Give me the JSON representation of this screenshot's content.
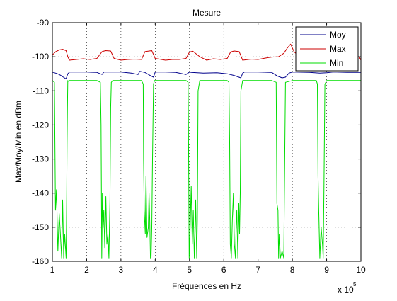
{
  "chart_data": {
    "type": "line",
    "title": "Mesure",
    "xlabel": "Fréquences en Hz",
    "ylabel": "Max/Moy/Min en dBm",
    "x_exponent_label": "x 10",
    "x_exponent": "5",
    "xlim": [
      1,
      10
    ],
    "ylim": [
      -160,
      -90
    ],
    "xticks": [
      1,
      2,
      3,
      4,
      5,
      6,
      7,
      8,
      9,
      10
    ],
    "yticks": [
      -90,
      -100,
      -110,
      -120,
      -130,
      -140,
      -150,
      -160
    ],
    "grid": true,
    "legend_position": "top-right",
    "series": [
      {
        "name": "Moy",
        "color": "#00008b",
        "x": [
          1.0,
          1.15,
          1.25,
          1.32,
          1.4,
          1.45,
          1.5,
          2.0,
          2.3,
          2.45,
          2.5,
          3.0,
          3.3,
          3.5,
          3.55,
          3.7,
          3.85,
          3.95,
          4.0,
          4.3,
          4.6,
          4.9,
          5.0,
          5.05,
          5.4,
          5.8,
          6.1,
          6.3,
          6.5,
          6.55,
          6.6,
          7.0,
          7.4,
          7.55,
          7.7,
          7.8,
          7.9,
          8.0,
          8.5,
          8.8,
          9.0,
          9.2,
          9.6,
          10.0
        ],
        "y": [
          -104.5,
          -105.0,
          -105.5,
          -106.0,
          -106.5,
          -105.0,
          -104.5,
          -104.5,
          -104.6,
          -105.2,
          -104.5,
          -104.5,
          -104.8,
          -105.2,
          -104.3,
          -104.6,
          -105.5,
          -106.0,
          -104.5,
          -104.5,
          -104.6,
          -105.2,
          -104.5,
          -104.6,
          -104.8,
          -104.7,
          -105.0,
          -105.5,
          -106.2,
          -104.8,
          -104.5,
          -104.5,
          -104.6,
          -105.6,
          -106.2,
          -106.0,
          -104.8,
          -104.5,
          -104.6,
          -104.8,
          -104.7,
          -104.5,
          -104.6,
          -104.6
        ]
      },
      {
        "name": "Max",
        "color": "#cc0000",
        "x": [
          1.0,
          1.1,
          1.2,
          1.3,
          1.4,
          1.45,
          1.5,
          1.7,
          1.9,
          2.1,
          2.3,
          2.45,
          2.55,
          2.7,
          2.8,
          3.0,
          3.2,
          3.4,
          3.6,
          3.7,
          3.9,
          4.0,
          4.3,
          4.5,
          4.7,
          4.9,
          5.0,
          5.1,
          5.3,
          5.5,
          5.7,
          5.9,
          6.1,
          6.2,
          6.3,
          6.45,
          6.55,
          6.8,
          7.0,
          7.2,
          7.4,
          7.6,
          7.75,
          7.85,
          7.95,
          8.05,
          8.2,
          8.4,
          8.6,
          8.8,
          9.0,
          9.2,
          9.4,
          9.6,
          9.8,
          9.95,
          10.0
        ],
        "y": [
          -99.5,
          -98.5,
          -98.0,
          -97.8,
          -98.2,
          -100.0,
          -101.0,
          -100.8,
          -100.6,
          -100.8,
          -100.5,
          -98.5,
          -98.2,
          -98.3,
          -100.5,
          -101.0,
          -100.8,
          -100.7,
          -100.8,
          -98.5,
          -98.2,
          -100.5,
          -101.0,
          -100.8,
          -100.8,
          -100.5,
          -98.6,
          -98.4,
          -100.0,
          -101.0,
          -100.6,
          -100.8,
          -100.5,
          -98.6,
          -98.3,
          -98.5,
          -101.0,
          -100.7,
          -100.8,
          -100.4,
          -100.1,
          -100.0,
          -99.0,
          -97.5,
          -96.3,
          -98.5,
          -100.0,
          -100.2,
          -100.0,
          -99.8,
          -99.5,
          -100.0,
          -100.2,
          -100.3,
          -100.2,
          -100.0,
          -101.0
        ]
      },
      {
        "name": "Min",
        "color": "#00dd00",
        "x": [
          1.0,
          1.06,
          1.09,
          1.12,
          1.16,
          1.2,
          1.23,
          1.27,
          1.3,
          1.33,
          1.36,
          1.4,
          1.41,
          1.42,
          1.43,
          1.44,
          1.45,
          1.48,
          1.5,
          2.0,
          2.3,
          2.4,
          2.42,
          2.44,
          2.46,
          2.48,
          2.5,
          2.53,
          2.56,
          2.59,
          2.62,
          2.65,
          2.68,
          2.7,
          2.72,
          2.76,
          2.8,
          3.0,
          3.3,
          3.6,
          3.65,
          3.66,
          3.68,
          3.71,
          3.73,
          3.76,
          3.8,
          3.82,
          3.84,
          3.86,
          3.88,
          3.9,
          3.92,
          3.95,
          3.98,
          4.0,
          4.3,
          4.6,
          4.9,
          4.96,
          4.97,
          4.99,
          5.02,
          5.05,
          5.08,
          5.11,
          5.14,
          5.16,
          5.18,
          5.21,
          5.23,
          5.25,
          5.3,
          5.7,
          6.1,
          6.15,
          6.17,
          6.19,
          6.22,
          6.25,
          6.28,
          6.31,
          6.34,
          6.36,
          6.38,
          6.41,
          6.44,
          6.46,
          6.48,
          6.5,
          6.55,
          7.0,
          7.4,
          7.53,
          7.55,
          7.58,
          7.6,
          7.62,
          7.65,
          7.7,
          7.75,
          7.8,
          8.0,
          8.4,
          8.7,
          8.73,
          8.75,
          8.77,
          8.8,
          8.84,
          8.88,
          8.9,
          8.92,
          8.95,
          9.0,
          9.5,
          10.0
        ],
        "y": [
          -107.0,
          -107.5,
          -145.0,
          -139.0,
          -157.0,
          -146.0,
          -151.0,
          -159.0,
          -142.0,
          -159.0,
          -152.0,
          -159.0,
          -150.0,
          -140.0,
          -125.0,
          -115.0,
          -107.0,
          -107.3,
          -107.0,
          -107.0,
          -107.0,
          -107.5,
          -120.0,
          -159.0,
          -140.0,
          -150.0,
          -145.0,
          -156.0,
          -141.0,
          -155.0,
          -152.0,
          -159.0,
          -142.0,
          -115.0,
          -107.5,
          -107.0,
          -107.0,
          -107.0,
          -107.0,
          -107.0,
          -108.0,
          -130.0,
          -145.0,
          -152.0,
          -135.0,
          -153.0,
          -150.0,
          -140.0,
          -148.0,
          -159.0,
          -159.0,
          -150.0,
          -130.0,
          -108.0,
          -107.0,
          -107.0,
          -107.0,
          -107.0,
          -107.0,
          -107.5,
          -120.0,
          -159.0,
          -150.0,
          -138.0,
          -155.0,
          -145.0,
          -159.0,
          -152.0,
          -142.0,
          -159.0,
          -148.0,
          -110.0,
          -107.0,
          -107.0,
          -107.0,
          -107.5,
          -125.0,
          -155.0,
          -159.0,
          -148.0,
          -140.0,
          -155.0,
          -159.0,
          -150.0,
          -145.0,
          -159.0,
          -143.0,
          -152.0,
          -140.0,
          -110.0,
          -107.0,
          -107.0,
          -107.0,
          -107.5,
          -143.0,
          -145.0,
          -159.0,
          -152.0,
          -159.0,
          -157.0,
          -159.0,
          -107.5,
          -107.0,
          -107.0,
          -107.0,
          -108.0,
          -135.0,
          -145.0,
          -159.0,
          -150.0,
          -155.0,
          -159.0,
          -140.0,
          -108.0,
          -107.0,
          -107.0,
          -107.0
        ]
      }
    ]
  }
}
